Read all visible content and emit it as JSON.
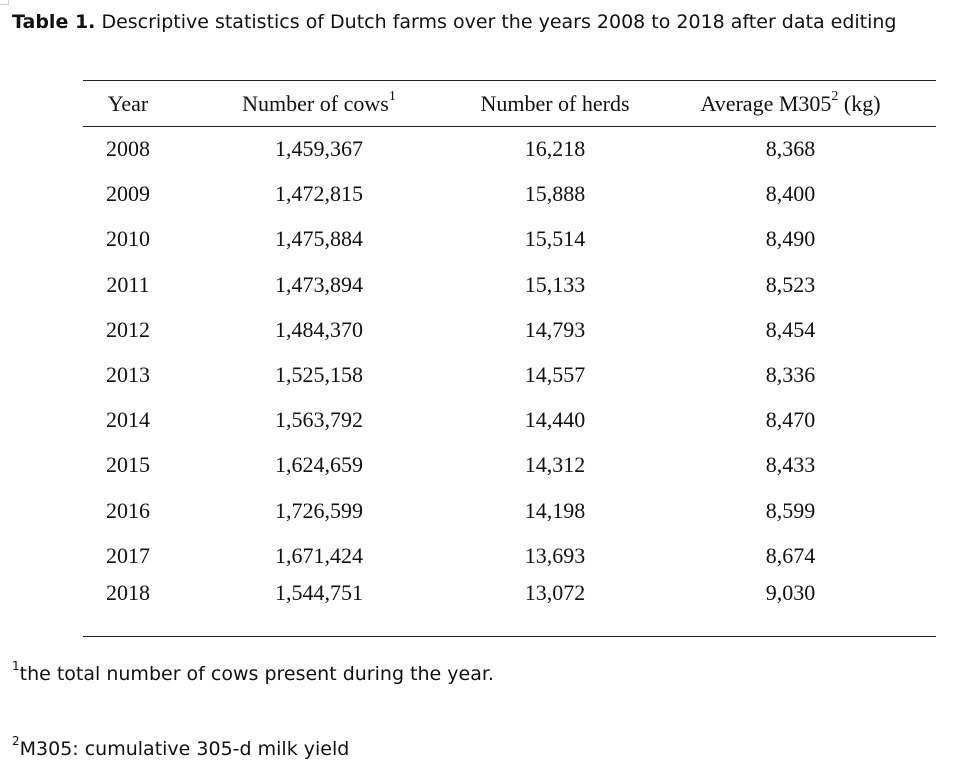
{
  "caption": {
    "label": "Table 1.",
    "text": "Descriptive statistics of Dutch farms over the years 2008 to 2018 after data editing"
  },
  "table": {
    "headers": {
      "year": "Year",
      "cows": "Number of cows",
      "cows_sup": "1",
      "herds": "Number of herds",
      "m305_pre": "Average M305",
      "m305_sup": "2",
      "m305_post": " (kg)"
    },
    "rows": [
      {
        "year": "2008",
        "cows": "1,459,367",
        "herds": "16,218",
        "m305": "8,368"
      },
      {
        "year": "2009",
        "cows": "1,472,815",
        "herds": "15,888",
        "m305": "8,400"
      },
      {
        "year": "2010",
        "cows": "1,475,884",
        "herds": "15,514",
        "m305": "8,490"
      },
      {
        "year": "2011",
        "cows": "1,473,894",
        "herds": "15,133",
        "m305": "8,523"
      },
      {
        "year": "2012",
        "cows": "1,484,370",
        "herds": "14,793",
        "m305": "8,454"
      },
      {
        "year": "2013",
        "cows": "1,525,158",
        "herds": "14,557",
        "m305": "8,336"
      },
      {
        "year": "2014",
        "cows": "1,563,792",
        "herds": "14,440",
        "m305": "8,470"
      },
      {
        "year": "2015",
        "cows": "1,624,659",
        "herds": "14,312",
        "m305": "8,433"
      },
      {
        "year": "2016",
        "cows": "1,726,599",
        "herds": "14,198",
        "m305": "8,599"
      },
      {
        "year": "2017",
        "cows": "1,671,424",
        "herds": "13,693",
        "m305": "8,674"
      },
      {
        "year": "2018",
        "cows": "1,544,751",
        "herds": "13,072",
        "m305": "9,030"
      }
    ]
  },
  "footnotes": [
    {
      "marker": "1",
      "text": "the total number of cows present during the year."
    },
    {
      "marker": "2",
      "text": "M305: cumulative 305-d milk yield"
    }
  ]
}
